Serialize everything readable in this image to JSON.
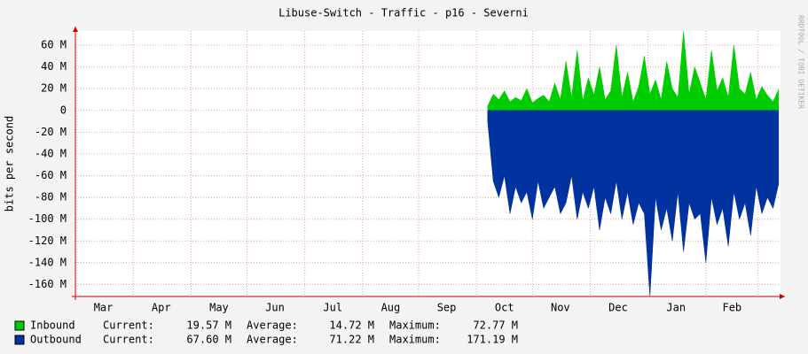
{
  "chart_data": {
    "type": "area",
    "title": "Libuse-Switch - Traffic - p16 - Severni",
    "y_label": "bits per second",
    "watermark": "RRDTOOL / TOBI OETIKER",
    "xlim": [
      0,
      378
    ],
    "xticks": [
      {
        "value": 15,
        "label": "Mar"
      },
      {
        "value": 46,
        "label": "Apr"
      },
      {
        "value": 77,
        "label": "May"
      },
      {
        "value": 107,
        "label": "Jun"
      },
      {
        "value": 138,
        "label": "Jul"
      },
      {
        "value": 169,
        "label": "Aug"
      },
      {
        "value": 199,
        "label": "Sep"
      },
      {
        "value": 230,
        "label": "Oct"
      },
      {
        "value": 260,
        "label": "Nov"
      },
      {
        "value": 291,
        "label": "Dec"
      },
      {
        "value": 322,
        "label": "Jan"
      },
      {
        "value": 352,
        "label": "Feb"
      }
    ],
    "xgrid": [
      1,
      31,
      62,
      92,
      123,
      154,
      184,
      215,
      245,
      276,
      307,
      338,
      366
    ],
    "ylim": [
      -171,
      73
    ],
    "yticks": [
      {
        "value": 60,
        "label": "60 M"
      },
      {
        "value": 40,
        "label": "40 M"
      },
      {
        "value": 20,
        "label": "20 M"
      },
      0,
      {
        "value": -20,
        "label": "-20 M"
      },
      {
        "value": -40,
        "label": "-40 M"
      },
      {
        "value": -60,
        "label": "-60 M"
      },
      {
        "value": -80,
        "label": "-80 M"
      },
      {
        "value": -100,
        "label": "-100 M"
      },
      {
        "value": -120,
        "label": "-120 M"
      },
      {
        "value": -140,
        "label": "-140 M"
      },
      {
        "value": -160,
        "label": "-160 M"
      }
    ],
    "grid": true,
    "x": [
      221,
      224,
      227,
      230,
      233,
      236,
      239,
      242,
      245,
      248,
      251,
      254,
      257,
      260,
      263,
      266,
      269,
      272,
      275,
      278,
      281,
      284,
      287,
      290,
      293,
      296,
      299,
      302,
      305,
      308,
      311,
      314,
      317,
      320,
      323,
      326,
      329,
      332,
      335,
      338,
      341,
      344,
      347,
      350,
      353,
      356,
      359,
      362,
      365,
      368,
      371,
      374,
      377
    ],
    "stat_labels": [
      "Current:",
      "Average:",
      "Maximum:"
    ],
    "series": [
      {
        "name": "Inbound",
        "color": "#00cc00",
        "values": [
          4,
          15,
          10,
          18,
          8,
          12,
          9,
          20,
          7,
          11,
          14,
          8,
          25,
          10,
          45,
          12,
          55,
          9,
          30,
          14,
          40,
          10,
          18,
          60,
          12,
          35,
          8,
          22,
          50,
          15,
          28,
          10,
          45,
          20,
          12,
          72.77,
          15,
          40,
          25,
          10,
          55,
          18,
          30,
          12,
          60,
          20,
          15,
          35,
          10,
          22,
          14,
          8,
          19.57
        ],
        "stats": [
          "19.57 M",
          "14.72 M",
          "72.77 M"
        ]
      },
      {
        "name": "Outbound",
        "color": "#0033a0",
        "values": [
          -10,
          -65,
          -80,
          -60,
          -95,
          -70,
          -85,
          -75,
          -100,
          -65,
          -90,
          -80,
          -70,
          -95,
          -85,
          -60,
          -100,
          -75,
          -90,
          -70,
          -110,
          -80,
          -95,
          -65,
          -100,
          -75,
          -105,
          -85,
          -95,
          -171.19,
          -80,
          -110,
          -90,
          -120,
          -75,
          -130,
          -85,
          -100,
          -95,
          -140,
          -80,
          -105,
          -90,
          -125,
          -75,
          -100,
          -85,
          -115,
          -70,
          -95,
          -80,
          -90,
          -67.6
        ],
        "stats": [
          "67.60 M",
          "71.22 M",
          "171.19 M"
        ]
      }
    ]
  }
}
